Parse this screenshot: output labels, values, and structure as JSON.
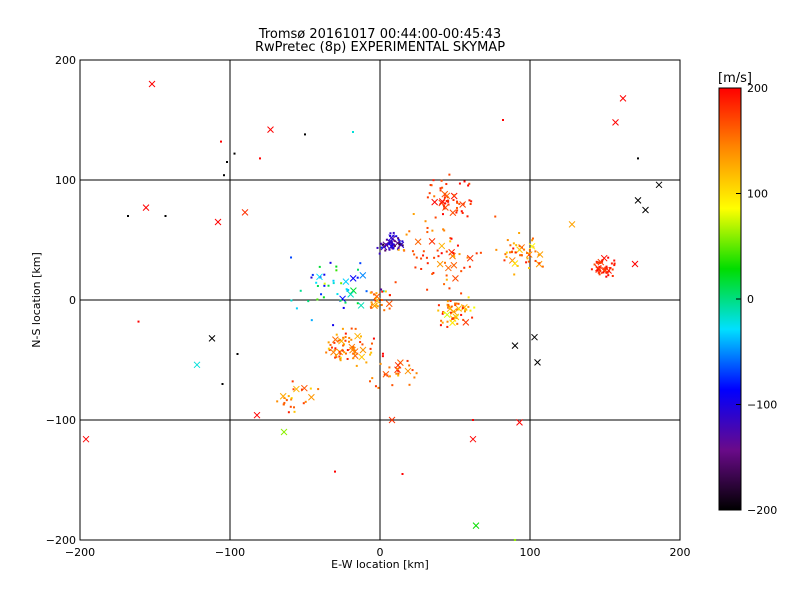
{
  "title_line1": "Tromsø 20161017 00:44:00-00:45:43",
  "title_line2": "RwPretec (8p) EXPERIMENTAL SKYMAP",
  "chart_data": {
    "type": "scatter",
    "title": "Tromsø 20161017 00:44:00-00:45:43",
    "subtitle": "RwPretec (8p) EXPERIMENTAL SKYMAP",
    "xlabel": "E-W location [km]",
    "ylabel": "N-S location [km]",
    "xlim": [
      -200,
      200
    ],
    "ylim": [
      -200,
      200
    ],
    "xticks": [
      -200,
      -100,
      0,
      100,
      200
    ],
    "yticks": [
      -200,
      -100,
      0,
      100,
      200
    ],
    "grid": true,
    "colorbar": {
      "label": "[m/s]",
      "range": [
        -200,
        200
      ],
      "ticks": [
        200,
        100,
        0,
        -100,
        -200
      ],
      "colors": [
        "#000000",
        "#6a0a8a",
        "#0000ff",
        "#00e0ff",
        "#00dd00",
        "#ffff00",
        "#ff8800",
        "#ff0000"
      ]
    },
    "clusters": [
      {
        "x": 8,
        "y": 47,
        "r": 8,
        "n": 40,
        "vmean": -120,
        "vspread": 80
      },
      {
        "x": 45,
        "y": 85,
        "r": 14,
        "n": 45,
        "vmean": 180,
        "vspread": 40
      },
      {
        "x": 50,
        "y": -10,
        "r": 12,
        "n": 45,
        "vmean": 150,
        "vspread": 90
      },
      {
        "x": -20,
        "y": -40,
        "r": 14,
        "n": 55,
        "vmean": 150,
        "vspread": 80
      },
      {
        "x": 148,
        "y": 28,
        "r": 8,
        "n": 35,
        "vmean": 185,
        "vspread": 30
      },
      {
        "x": 95,
        "y": 38,
        "r": 14,
        "n": 40,
        "vmean": 150,
        "vspread": 80
      },
      {
        "x": -30,
        "y": 10,
        "r": 25,
        "n": 40,
        "vmean": -20,
        "vspread": 150
      },
      {
        "x": 40,
        "y": 40,
        "r": 25,
        "n": 50,
        "vmean": 160,
        "vspread": 60
      },
      {
        "x": 10,
        "y": -60,
        "r": 15,
        "n": 25,
        "vmean": 170,
        "vspread": 60
      },
      {
        "x": -55,
        "y": -80,
        "r": 12,
        "n": 20,
        "vmean": 150,
        "vspread": 80
      },
      {
        "x": 0,
        "y": 0,
        "r": 10,
        "n": 20,
        "vmean": 150,
        "vspread": 90
      }
    ],
    "markers": [
      {
        "x": -152,
        "y": 180,
        "v": 200
      },
      {
        "x": 162,
        "y": 168,
        "v": 200
      },
      {
        "x": 157,
        "y": 148,
        "v": 200
      },
      {
        "x": -73,
        "y": 142,
        "v": 200
      },
      {
        "x": -156,
        "y": 77,
        "v": 200
      },
      {
        "x": -108,
        "y": 65,
        "v": 200
      },
      {
        "x": -90,
        "y": 73,
        "v": 180
      },
      {
        "x": -196,
        "y": -116,
        "v": 200
      },
      {
        "x": -82,
        "y": -96,
        "v": 200
      },
      {
        "x": 62,
        "y": -116,
        "v": 200
      },
      {
        "x": 93,
        "y": -102,
        "v": 200
      },
      {
        "x": 8,
        "y": -100,
        "v": 180
      },
      {
        "x": 177,
        "y": 75,
        "v": -200
      },
      {
        "x": 172,
        "y": 83,
        "v": -200
      },
      {
        "x": 186,
        "y": 96,
        "v": -200
      },
      {
        "x": -112,
        "y": -32,
        "v": -200
      },
      {
        "x": 64,
        "y": -188,
        "v": 30
      },
      {
        "x": -122,
        "y": -54,
        "v": -20
      },
      {
        "x": -64,
        "y": -110,
        "v": 60
      },
      {
        "x": 103,
        "y": -31,
        "v": -200
      },
      {
        "x": 90,
        "y": -38,
        "v": -200
      },
      {
        "x": 105,
        "y": -52,
        "v": -200
      },
      {
        "x": 170,
        "y": 30,
        "v": 200
      },
      {
        "x": 128,
        "y": 63,
        "v": 130
      }
    ],
    "points": [
      {
        "x": -168,
        "y": 70,
        "v": -200
      },
      {
        "x": -143,
        "y": 70,
        "v": -200
      },
      {
        "x": -102,
        "y": 115,
        "v": -200
      },
      {
        "x": -97,
        "y": 122,
        "v": -200
      },
      {
        "x": -104,
        "y": 104,
        "v": -200
      },
      {
        "x": -106,
        "y": 132,
        "v": 200
      },
      {
        "x": -80,
        "y": 118,
        "v": 200
      },
      {
        "x": -50,
        "y": 138,
        "v": -200
      },
      {
        "x": -18,
        "y": 140,
        "v": -20
      },
      {
        "x": 82,
        "y": 150,
        "v": 200
      },
      {
        "x": 172,
        "y": 118,
        "v": -200
      },
      {
        "x": -161,
        "y": -18,
        "v": 200
      },
      {
        "x": -105,
        "y": -70,
        "v": -200
      },
      {
        "x": 15,
        "y": -145,
        "v": 200
      },
      {
        "x": 90,
        "y": -200,
        "v": 60
      },
      {
        "x": -30,
        "y": -143,
        "v": 200
      },
      {
        "x": 62,
        "y": -100,
        "v": 200
      },
      {
        "x": -95,
        "y": -45,
        "v": -200
      }
    ]
  }
}
